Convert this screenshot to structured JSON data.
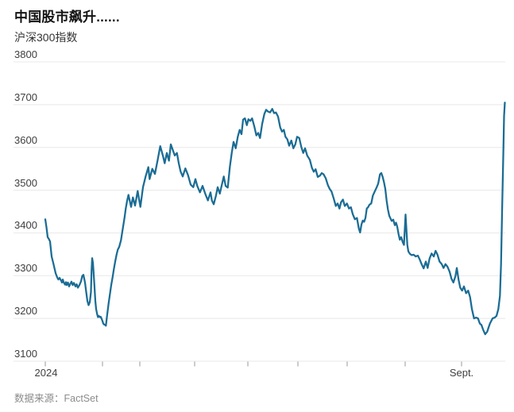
{
  "header": {
    "title": "中国股市飙升......",
    "subtitle": "沪深300指数"
  },
  "source": {
    "label": "数据来源：FactSet"
  },
  "chart_data": {
    "type": "line",
    "title": "中国股市飙升......",
    "subtitle": "沪深300指数",
    "series_name": "沪深300指数",
    "xlabel": "",
    "ylabel": "",
    "ylim": [
      3100,
      3800
    ],
    "y_ticks": [
      3800,
      3700,
      3600,
      3500,
      3400,
      3300,
      3200,
      3100
    ],
    "x_tick_labels": [
      "2024",
      "",
      "",
      "",
      "",
      "",
      "",
      "",
      "Sept."
    ],
    "grid": true,
    "legend": "none",
    "line_color": "#1a6c94",
    "grid_color": "#e8e8e8",
    "tick_color": "#999999",
    "points": [
      [
        57,
        3432
      ],
      [
        58.5,
        3413
      ],
      [
        60,
        3390
      ],
      [
        61.5,
        3386
      ],
      [
        63,
        3380
      ],
      [
        65,
        3345
      ],
      [
        67,
        3330
      ],
      [
        68.5,
        3318
      ],
      [
        70,
        3306
      ],
      [
        72,
        3296
      ],
      [
        73.5,
        3291
      ],
      [
        75,
        3295
      ],
      [
        77,
        3288
      ],
      [
        78,
        3284
      ],
      [
        79,
        3291
      ],
      [
        80.5,
        3283
      ],
      [
        82,
        3279
      ],
      [
        83,
        3285
      ],
      [
        84,
        3278
      ],
      [
        85.5,
        3284
      ],
      [
        87,
        3275
      ],
      [
        88.5,
        3281
      ],
      [
        90,
        3286
      ],
      [
        91.5,
        3278
      ],
      [
        93,
        3283
      ],
      [
        95,
        3275
      ],
      [
        96.5,
        3280
      ],
      [
        98,
        3272
      ],
      [
        100,
        3278
      ],
      [
        102,
        3287
      ],
      [
        103.5,
        3299
      ],
      [
        105,
        3302
      ],
      [
        107,
        3284
      ],
      [
        108.5,
        3262
      ],
      [
        110,
        3241
      ],
      [
        111.5,
        3231
      ],
      [
        113,
        3238
      ],
      [
        114.5,
        3262
      ],
      [
        115.2,
        3310
      ],
      [
        116,
        3341
      ],
      [
        117,
        3330
      ],
      [
        118,
        3302
      ],
      [
        119,
        3272
      ],
      [
        120,
        3241
      ],
      [
        121,
        3222
      ],
      [
        122.3,
        3210
      ],
      [
        123.3,
        3203
      ],
      [
        124.3,
        3206
      ],
      [
        125.7,
        3203
      ],
      [
        126.7,
        3204
      ],
      [
        127.7,
        3200
      ],
      [
        129,
        3194
      ],
      [
        130,
        3188
      ],
      [
        131,
        3186
      ],
      [
        132.3,
        3185
      ],
      [
        133.3,
        3183
      ],
      [
        135,
        3210
      ],
      [
        136.7,
        3235
      ],
      [
        138.3,
        3256
      ],
      [
        140,
        3278
      ],
      [
        141.7,
        3296
      ],
      [
        143.3,
        3315
      ],
      [
        145,
        3333
      ],
      [
        146.7,
        3349
      ],
      [
        148.3,
        3361
      ],
      [
        150,
        3367
      ],
      [
        152.3,
        3383
      ],
      [
        154.3,
        3407
      ],
      [
        156.7,
        3435
      ],
      [
        158.3,
        3457
      ],
      [
        160,
        3475
      ],
      [
        161.7,
        3489
      ],
      [
        165,
        3461
      ],
      [
        167.3,
        3483
      ],
      [
        170,
        3464
      ],
      [
        173.3,
        3498
      ],
      [
        176.7,
        3461
      ],
      [
        180,
        3507
      ],
      [
        183.3,
        3532
      ],
      [
        186.7,
        3554
      ],
      [
        188.3,
        3526
      ],
      [
        191.7,
        3550
      ],
      [
        195,
        3538
      ],
      [
        198.3,
        3569
      ],
      [
        201.7,
        3603
      ],
      [
        205,
        3581
      ],
      [
        207.3,
        3563
      ],
      [
        210,
        3587
      ],
      [
        212.7,
        3569
      ],
      [
        215,
        3607
      ],
      [
        218.3,
        3590
      ],
      [
        220,
        3581
      ],
      [
        222.7,
        3587
      ],
      [
        225,
        3563
      ],
      [
        227.3,
        3544
      ],
      [
        230,
        3532
      ],
      [
        233.3,
        3551
      ],
      [
        236.7,
        3535
      ],
      [
        240,
        3513
      ],
      [
        243.3,
        3507
      ],
      [
        246,
        3526
      ],
      [
        248.3,
        3510
      ],
      [
        251.7,
        3495
      ],
      [
        255,
        3510
      ],
      [
        258.3,
        3492
      ],
      [
        261.7,
        3476
      ],
      [
        265,
        3495
      ],
      [
        266.7,
        3476
      ],
      [
        269,
        3467
      ],
      [
        271.7,
        3486
      ],
      [
        274,
        3507
      ],
      [
        276.7,
        3492
      ],
      [
        279.3,
        3513
      ],
      [
        281.7,
        3532
      ],
      [
        284,
        3510
      ],
      [
        286.7,
        3506
      ],
      [
        289.3,
        3554
      ],
      [
        291.7,
        3587
      ],
      [
        294,
        3613
      ],
      [
        296.7,
        3598
      ],
      [
        299.3,
        3625
      ],
      [
        301.7,
        3641
      ],
      [
        304,
        3631
      ],
      [
        306,
        3665
      ],
      [
        308.3,
        3668
      ],
      [
        310.7,
        3652
      ],
      [
        312.7,
        3666
      ],
      [
        315,
        3662
      ],
      [
        317.3,
        3668
      ],
      [
        320,
        3650
      ],
      [
        322.7,
        3628
      ],
      [
        325,
        3634
      ],
      [
        327.3,
        3622
      ],
      [
        330,
        3655
      ],
      [
        332.7,
        3678
      ],
      [
        335,
        3688
      ],
      [
        337.3,
        3684
      ],
      [
        340,
        3682
      ],
      [
        342.7,
        3690
      ],
      [
        345,
        3680
      ],
      [
        347.3,
        3682
      ],
      [
        350,
        3672
      ],
      [
        352.7,
        3647
      ],
      [
        355,
        3637
      ],
      [
        357.3,
        3641
      ],
      [
        359.3,
        3625
      ],
      [
        361.7,
        3619
      ],
      [
        364,
        3604
      ],
      [
        366.7,
        3616
      ],
      [
        369.3,
        3598
      ],
      [
        371.7,
        3607
      ],
      [
        374,
        3625
      ],
      [
        376.7,
        3622
      ],
      [
        379.3,
        3601
      ],
      [
        381.7,
        3587
      ],
      [
        384,
        3598
      ],
      [
        386.7,
        3581
      ],
      [
        390,
        3571
      ],
      [
        392.7,
        3552
      ],
      [
        395,
        3543
      ],
      [
        397.3,
        3549
      ],
      [
        400,
        3531
      ],
      [
        402.7,
        3534
      ],
      [
        405,
        3540
      ],
      [
        407.3,
        3537
      ],
      [
        410,
        3528
      ],
      [
        412.7,
        3512
      ],
      [
        415,
        3503
      ],
      [
        417.3,
        3497
      ],
      [
        420,
        3481
      ],
      [
        422.7,
        3463
      ],
      [
        425,
        3469
      ],
      [
        427.3,
        3457
      ],
      [
        429.3,
        3472
      ],
      [
        431.7,
        3478
      ],
      [
        434,
        3463
      ],
      [
        436.7,
        3469
      ],
      [
        439.3,
        3457
      ],
      [
        441.7,
        3460
      ],
      [
        444,
        3444
      ],
      [
        446.7,
        3432
      ],
      [
        449.3,
        3435
      ],
      [
        451.7,
        3410
      ],
      [
        453.3,
        3401
      ],
      [
        455,
        3420
      ],
      [
        456.7,
        3429
      ],
      [
        458.3,
        3426
      ],
      [
        460,
        3435
      ],
      [
        461.7,
        3457
      ],
      [
        463.3,
        3460
      ],
      [
        465,
        3466
      ],
      [
        467.3,
        3469
      ],
      [
        469.3,
        3487
      ],
      [
        471.7,
        3497
      ],
      [
        474,
        3506
      ],
      [
        476,
        3515
      ],
      [
        478.3,
        3537
      ],
      [
        480,
        3540
      ],
      [
        481.7,
        3531
      ],
      [
        483.3,
        3519
      ],
      [
        485,
        3503
      ],
      [
        486.7,
        3475
      ],
      [
        488.3,
        3455
      ],
      [
        490,
        3440
      ],
      [
        493,
        3428
      ],
      [
        495,
        3431
      ],
      [
        497,
        3418
      ],
      [
        498.5,
        3424
      ],
      [
        500,
        3415
      ],
      [
        501.7,
        3397
      ],
      [
        503.3,
        3384
      ],
      [
        505,
        3390
      ],
      [
        507,
        3378
      ],
      [
        508.5,
        3372
      ],
      [
        510.5,
        3443
      ],
      [
        512.7,
        3372
      ],
      [
        514,
        3357
      ],
      [
        516,
        3351
      ],
      [
        518.3,
        3348
      ],
      [
        520.7,
        3349
      ],
      [
        523.3,
        3345
      ],
      [
        526,
        3347
      ],
      [
        528.3,
        3338
      ],
      [
        530.7,
        3327
      ],
      [
        533.3,
        3317
      ],
      [
        536,
        3333
      ],
      [
        538.3,
        3318
      ],
      [
        540.7,
        3340
      ],
      [
        543.3,
        3352
      ],
      [
        546,
        3345
      ],
      [
        548.3,
        3358
      ],
      [
        550.7,
        3349
      ],
      [
        553.3,
        3333
      ],
      [
        556,
        3327
      ],
      [
        558.3,
        3318
      ],
      [
        560.7,
        3327
      ],
      [
        563.3,
        3321
      ],
      [
        566,
        3309
      ],
      [
        568.3,
        3293
      ],
      [
        570.7,
        3284
      ],
      [
        573.3,
        3299
      ],
      [
        575,
        3318
      ],
      [
        577.3,
        3290
      ],
      [
        579.3,
        3272
      ],
      [
        581.7,
        3265
      ],
      [
        584,
        3275
      ],
      [
        586.7,
        3259
      ],
      [
        589.3,
        3265
      ],
      [
        591.7,
        3250
      ],
      [
        594,
        3222
      ],
      [
        596.7,
        3200
      ],
      [
        599.3,
        3202
      ],
      [
        601.7,
        3200
      ],
      [
        604,
        3188
      ],
      [
        606,
        3185
      ],
      [
        608.3,
        3173
      ],
      [
        610.7,
        3163
      ],
      [
        613.3,
        3169
      ],
      [
        615,
        3179
      ],
      [
        616.7,
        3188
      ],
      [
        620,
        3200
      ],
      [
        622.7,
        3202
      ],
      [
        625,
        3206
      ],
      [
        627.3,
        3222
      ],
      [
        629.3,
        3253
      ],
      [
        630.7,
        3327
      ],
      [
        632,
        3450
      ],
      [
        633.5,
        3581
      ],
      [
        634.5,
        3674
      ],
      [
        635.5,
        3705
      ]
    ]
  }
}
